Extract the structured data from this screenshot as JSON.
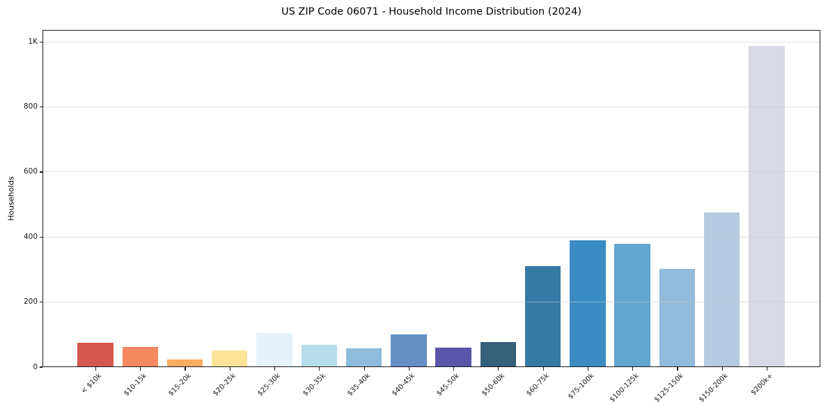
{
  "chart_data": {
    "type": "bar",
    "title": "US ZIP Code 06071 - Household Income Distribution (2024)",
    "xlabel": "",
    "ylabel": "Households",
    "categories": [
      "< $10k",
      "$10-15k",
      "$15-20k",
      "$20-25k",
      "$25-30k",
      "$30-35k",
      "$35-40k",
      "$40-45k",
      "$45-50k",
      "$50-60k",
      "$60-75k",
      "$75-100k",
      "$100-125k",
      "$125-150k",
      "$150-200k",
      "$200k+"
    ],
    "values": [
      72,
      60,
      21,
      49,
      103,
      67,
      56,
      98,
      58,
      74,
      309,
      387,
      377,
      299,
      473,
      985
    ],
    "bar_colors": [
      "#d5584f",
      "#f68860",
      "#fbac63",
      "#fde398",
      "#e5f3f9",
      "#b7dcea",
      "#8ebcdb",
      "#6690c5",
      "#5b55a9",
      "#365f7a",
      "#3579a4",
      "#3a8cc3",
      "#60a6cf",
      "#92badb",
      "#b5cae0",
      "#d8dae7"
    ],
    "ylim": [
      0,
      1037
    ],
    "yticks": {
      "values": [
        0,
        200,
        400,
        600,
        800,
        1000
      ],
      "labels": [
        "0",
        "200",
        "400",
        "600",
        "800",
        "1K"
      ]
    },
    "grid": true,
    "grid_position": "above-bars",
    "colors": {
      "background": "#ffffff",
      "spine": "#1a1a1a",
      "grid": "rgba(200,200,200,0.55)",
      "tick_text": "#1a1a1a",
      "title_text": "#000000"
    },
    "legend": null
  }
}
